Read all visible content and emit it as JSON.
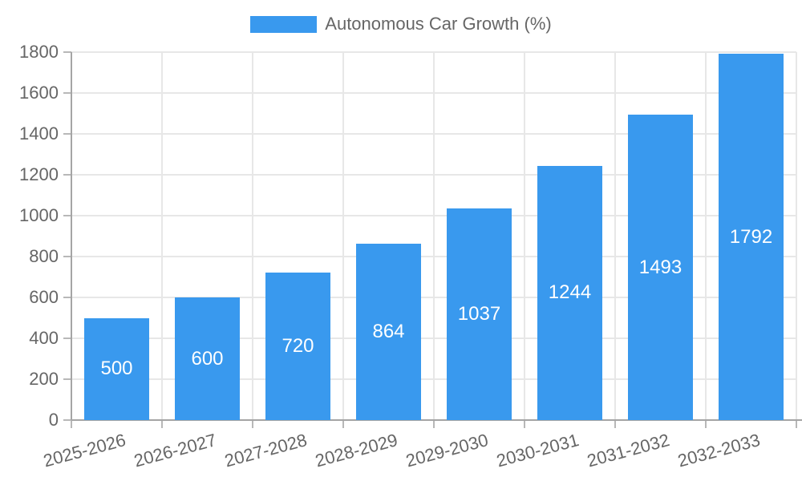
{
  "chart_data": {
    "type": "bar",
    "title": "Autonomous Car Growth (%)",
    "categories": [
      "2025-2026",
      "2026-2027",
      "2027-2028",
      "2028-2029",
      "2029-2030",
      "2030-2031",
      "2031-2032",
      "2032-2033"
    ],
    "values": [
      500,
      600,
      720,
      864,
      1037,
      1244,
      1493,
      1792
    ],
    "xlabel": "",
    "ylabel": "",
    "ylim": [
      0,
      1800
    ],
    "ytick_step": 200,
    "yticks": [
      0,
      200,
      400,
      600,
      800,
      1000,
      1200,
      1400,
      1600,
      1800
    ],
    "grid": true,
    "legend_position": "top",
    "x_label_rotation_deg": -15,
    "bar_color": "#3999ee",
    "value_label_color": "#ffffff",
    "axis_text_color": "#666666",
    "gridline_color": "#e7e7e7",
    "tick_color": "#b8b8b8",
    "axis_line_color": "#a5a5a5"
  }
}
